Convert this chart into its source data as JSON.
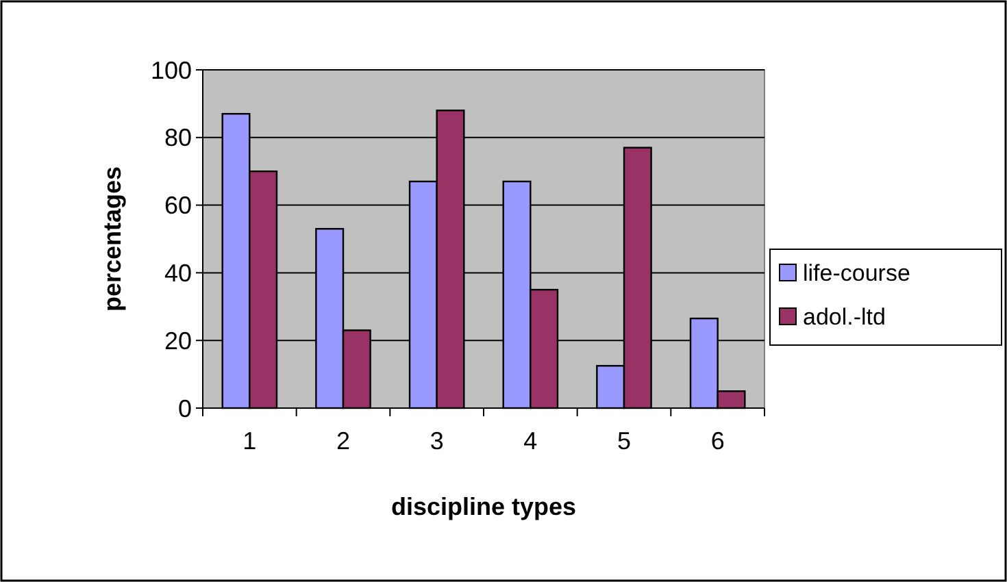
{
  "chart_data": {
    "type": "bar",
    "xlabel": "discipline types",
    "ylabel": "percentages",
    "categories": [
      "1",
      "2",
      "3",
      "4",
      "5",
      "6"
    ],
    "series": [
      {
        "name": "life-course",
        "color": "#9999ff",
        "values": [
          87,
          53,
          67,
          67,
          12.5,
          26.5
        ]
      },
      {
        "name": "adol.-ltd",
        "color": "#993366",
        "values": [
          70,
          23,
          88,
          35,
          77,
          5
        ]
      }
    ],
    "ylim": [
      0,
      100
    ],
    "yticks": [
      0,
      20,
      40,
      60,
      80,
      100
    ],
    "grid": "y",
    "legend": "right"
  }
}
